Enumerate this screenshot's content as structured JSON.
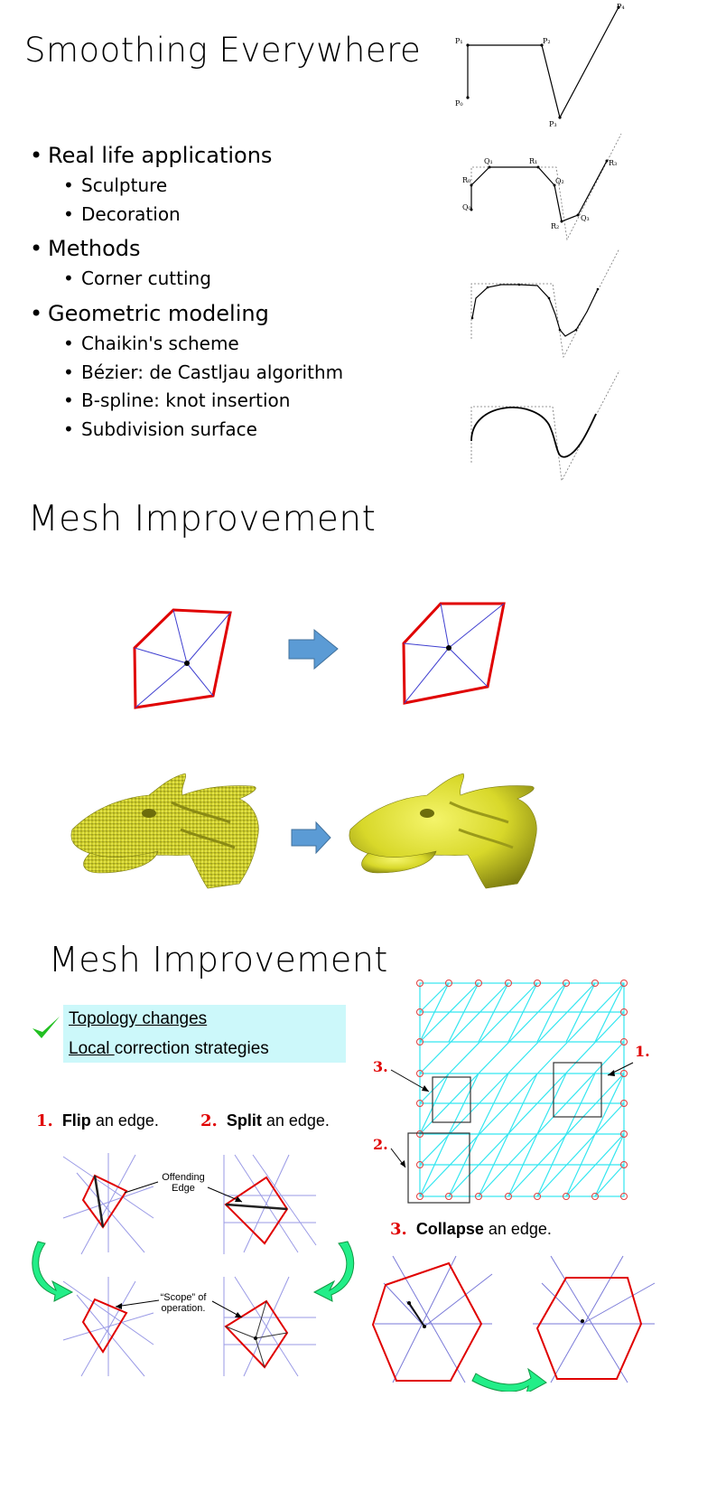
{
  "slide1": {
    "title": "Smoothing Everywhere",
    "bullets": {
      "b1": "Real life applications",
      "b1a": "Sculpture",
      "b1b": "Decoration",
      "b2": "Methods",
      "b2a": "Corner cutting",
      "b3": "Geometric modeling",
      "b3a": "Chaikin's scheme",
      "b3b": "Bézier: de Castljau algorithm",
      "b3c": "B-spline: knot insertion",
      "b3d": "Subdivision surface"
    },
    "diagram_labels": {
      "p0": "P₀",
      "p1": "P₁",
      "p2": "P₂",
      "p3": "P₃",
      "p4": "P₄",
      "q0": "Q₀",
      "q1": "Q₁",
      "q2": "Q₂",
      "q3": "Q₃",
      "r0": "R₀",
      "r1": "R₁",
      "r2": "R₂",
      "r3": "R₃"
    }
  },
  "slide2": {
    "title": "Mesh Improvement"
  },
  "slide3": {
    "title": "Mesh Improvement",
    "highlight": {
      "line1": "Topology changes",
      "line2_underlined": "Local ",
      "line2_rest": "correction strategies"
    },
    "steps": {
      "flip_num": "1.",
      "flip_bold": "Flip",
      "flip_rest": " an edge.",
      "split_num": "2.",
      "split_bold": "Split",
      "split_rest": " an edge.",
      "collapse_num": "3.",
      "collapse_bold": "Collapse",
      "collapse_rest": " an edge."
    },
    "annotations": {
      "offending_1": "Offending",
      "offending_2": "Edge",
      "scope_1": "“Scope” of",
      "scope_2": "operation."
    },
    "grid_markers": {
      "m1": "1.",
      "m2": "2.",
      "m3": "3."
    }
  },
  "colors": {
    "red": "#e00000",
    "blue": "#6666cc",
    "cyan": "#33e6f0",
    "arrow_blue": "#5b9bd5",
    "green_arrow": "#22ee88",
    "dragon": "#dede2e"
  }
}
